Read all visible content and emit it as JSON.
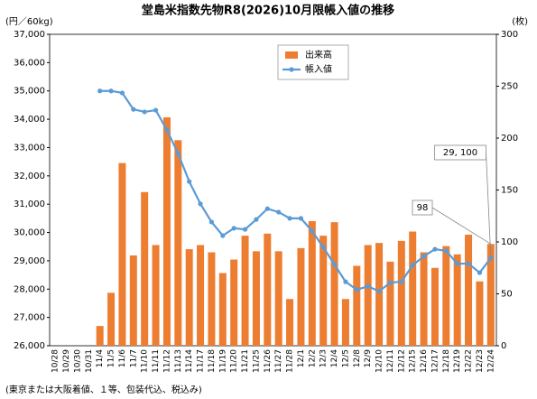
{
  "chart_data": {
    "type": "bar_line",
    "title": "堂島米指数先物R8(2026)10月限帳入値の推移",
    "y_label": "(円／60kg)",
    "y2_label": "(枚)",
    "note": "(東京または大阪着値、１等、包装代込、税込み)",
    "categories": [
      "10/28",
      "10/29",
      "10/30",
      "10/31",
      "11/4",
      "11/5",
      "11/6",
      "11/7",
      "11/10",
      "11/11",
      "11/12",
      "11/13",
      "11/14",
      "11/17",
      "11/18",
      "11/19",
      "11/20",
      "11/21",
      "11/25",
      "11/26",
      "11/27",
      "11/28",
      "12/1",
      "12/2",
      "12/3",
      "12/4",
      "12/5",
      "12/8",
      "12/9",
      "12/10",
      "12/11",
      "12/12",
      "12/15",
      "12/16",
      "12/17",
      "12/18",
      "12/19",
      "12/22",
      "12/23",
      "12/24"
    ],
    "series": [
      {
        "name": "出来高",
        "type": "bar",
        "axis": "y2",
        "color": "#ED7D31",
        "values": [
          0,
          0,
          0,
          0,
          19,
          51,
          176,
          87,
          148,
          97,
          220,
          198,
          93,
          97,
          90,
          70,
          83,
          106,
          91,
          108,
          91,
          45,
          94,
          120,
          106,
          119,
          45,
          77,
          97,
          99,
          81,
          101,
          110,
          90,
          75,
          96,
          88,
          107,
          62,
          98
        ],
        "value_labels": [
          null,
          null,
          null,
          null,
          null,
          null,
          null,
          null,
          null,
          null,
          null,
          null,
          null,
          null,
          null,
          null,
          null,
          null,
          null,
          null,
          null,
          null,
          null,
          null,
          null,
          null,
          null,
          null,
          null,
          null,
          null,
          null,
          null,
          null,
          null,
          null,
          null,
          null,
          null,
          "98"
        ]
      },
      {
        "name": "帳入値",
        "type": "line",
        "color": "#5B9BD5",
        "values": [
          null,
          null,
          null,
          null,
          35000,
          35000,
          34930,
          34350,
          34260,
          34320,
          33620,
          32790,
          31800,
          31010,
          30370,
          29890,
          30150,
          30110,
          30460,
          30840,
          30720,
          30500,
          30500,
          30050,
          29480,
          28870,
          28260,
          27980,
          28100,
          27920,
          28230,
          28260,
          28840,
          29160,
          29410,
          29350,
          28900,
          28900,
          28580,
          29100
        ],
        "value_labels": [
          null,
          null,
          null,
          null,
          null,
          null,
          null,
          null,
          null,
          null,
          null,
          null,
          null,
          null,
          null,
          null,
          null,
          null,
          null,
          null,
          null,
          null,
          null,
          null,
          null,
          null,
          null,
          null,
          null,
          null,
          null,
          null,
          null,
          null,
          null,
          null,
          null,
          null,
          null,
          "29, 100"
        ]
      }
    ],
    "ylim": [
      26000,
      37000
    ],
    "yticks": [
      {
        "value": 26000,
        "label": "26,000"
      },
      {
        "value": 27000,
        "label": "27,000"
      },
      {
        "value": 28000,
        "label": "28,000"
      },
      {
        "value": 29000,
        "label": "29,000"
      },
      {
        "value": 30000,
        "label": "30,000"
      },
      {
        "value": 31000,
        "label": "31,000"
      },
      {
        "value": 32000,
        "label": "32,000"
      },
      {
        "value": 33000,
        "label": "33,000"
      },
      {
        "value": 34000,
        "label": "34,000"
      },
      {
        "value": 35000,
        "label": "35,000"
      },
      {
        "value": 36000,
        "label": "36,000"
      },
      {
        "value": 37000,
        "label": "37,000"
      }
    ],
    "y2lim": [
      0,
      300
    ],
    "y2ticks": [
      0,
      50,
      100,
      150,
      200,
      250,
      300
    ],
    "grid": false,
    "legend": "top"
  }
}
